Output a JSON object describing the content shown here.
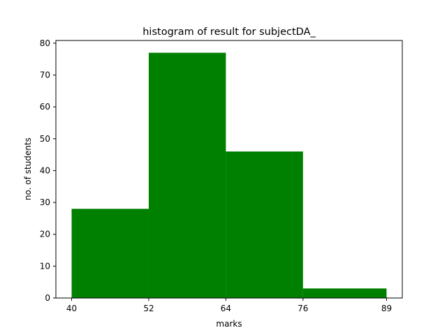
{
  "chart_data": {
    "type": "bar",
    "title": "histogram of result for subjectDA_",
    "xlabel": "marks",
    "ylabel": "no. of students",
    "bins": [
      {
        "start": 40,
        "end": 52,
        "value": 28
      },
      {
        "start": 52,
        "end": 64,
        "value": 77
      },
      {
        "start": 64,
        "end": 76,
        "value": 46
      },
      {
        "start": 76,
        "end": 89,
        "value": 3
      }
    ],
    "x_ticks": [
      40,
      52,
      64,
      76,
      89
    ],
    "y_ticks": [
      0,
      10,
      20,
      30,
      40,
      50,
      60,
      70,
      80
    ],
    "xlim": [
      37.55,
      91.45
    ],
    "ylim": [
      0,
      80.85
    ],
    "bar_color": "#008000",
    "grid": false,
    "legend": "none"
  }
}
